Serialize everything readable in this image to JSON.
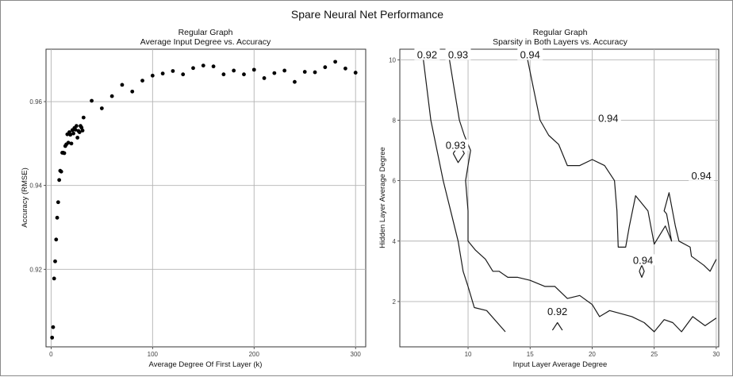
{
  "figure": {
    "title": "Spare Neural Net Performance"
  },
  "chart_data": [
    {
      "type": "scatter",
      "title": "Regular Graph",
      "subtitle": "Average Input Degree vs. Accuracy",
      "xlabel": "Average Degree Of First Layer (k)",
      "ylabel": "Accuracy (RMSE)",
      "xlim": [
        -5,
        310
      ],
      "ylim": [
        0.9015,
        0.9725
      ],
      "xticks": [
        0,
        100,
        200,
        300
      ],
      "yticks": [
        0.92,
        0.94,
        0.96
      ],
      "ytick_labels": [
        "0.92",
        "0.94",
        "0.96"
      ],
      "grid": true,
      "points": [
        [
          1,
          0.9037
        ],
        [
          2,
          0.9062
        ],
        [
          3,
          0.9178
        ],
        [
          4,
          0.9219
        ],
        [
          5,
          0.9271
        ],
        [
          6,
          0.9323
        ],
        [
          7,
          0.936
        ],
        [
          8,
          0.9413
        ],
        [
          9,
          0.9435
        ],
        [
          10,
          0.9433
        ],
        [
          11,
          0.9478
        ],
        [
          12,
          0.9478
        ],
        [
          13,
          0.9477
        ],
        [
          14,
          0.9494
        ],
        [
          15,
          0.9498
        ],
        [
          16,
          0.9522
        ],
        [
          17,
          0.9502
        ],
        [
          18,
          0.9527
        ],
        [
          19,
          0.9521
        ],
        [
          20,
          0.95
        ],
        [
          21,
          0.9532
        ],
        [
          22,
          0.9524
        ],
        [
          23,
          0.9537
        ],
        [
          24,
          0.9533
        ],
        [
          25,
          0.9542
        ],
        [
          26,
          0.9514
        ],
        [
          27,
          0.953
        ],
        [
          28,
          0.9527
        ],
        [
          29,
          0.9542
        ],
        [
          30,
          0.9538
        ],
        [
          31,
          0.9531
        ],
        [
          32,
          0.9562
        ],
        [
          40,
          0.9602
        ],
        [
          50,
          0.9584
        ],
        [
          60,
          0.9613
        ],
        [
          70,
          0.964
        ],
        [
          80,
          0.9624
        ],
        [
          90,
          0.965
        ],
        [
          100,
          0.9662
        ],
        [
          110,
          0.9667
        ],
        [
          120,
          0.9673
        ],
        [
          130,
          0.9665
        ],
        [
          140,
          0.968
        ],
        [
          150,
          0.9686
        ],
        [
          160,
          0.9684
        ],
        [
          170,
          0.9665
        ],
        [
          180,
          0.9674
        ],
        [
          190,
          0.9665
        ],
        [
          200,
          0.9676
        ],
        [
          210,
          0.9656
        ],
        [
          220,
          0.9668
        ],
        [
          230,
          0.9674
        ],
        [
          240,
          0.9647
        ],
        [
          250,
          0.9671
        ],
        [
          260,
          0.967
        ],
        [
          270,
          0.9682
        ],
        [
          280,
          0.9695
        ],
        [
          290,
          0.9679
        ],
        [
          300,
          0.9669
        ]
      ]
    },
    {
      "type": "contour",
      "title": "Regular Graph",
      "subtitle": "Sparsity in Both Layers vs. Accuracy",
      "xlabel": "Input Layer Average Degree",
      "ylabel": "Hidden Layer Average Degree",
      "xlim": [
        4.5,
        30.2
      ],
      "ylim": [
        0.5,
        10.35
      ],
      "xticks": [
        10,
        15,
        20,
        25,
        30
      ],
      "yticks": [
        2,
        4,
        6,
        8,
        10
      ],
      "grid": true,
      "contours": [
        {
          "level": "0.92",
          "paths": [
            [
              [
                6.4,
                10.0
              ],
              [
                6.7,
                9.0
              ],
              [
                7.0,
                8.0
              ],
              [
                7.5,
                7.0
              ],
              [
                8.0,
                6.0
              ],
              [
                8.6,
                5.0
              ],
              [
                9.2,
                4.0
              ],
              [
                9.6,
                3.0
              ],
              [
                10.0,
                2.5
              ],
              [
                10.5,
                1.8
              ],
              [
                11.5,
                1.7
              ],
              [
                13.0,
                1.0
              ]
            ],
            [
              [
                16.8,
                1.05
              ],
              [
                17.2,
                1.3
              ],
              [
                17.6,
                1.05
              ]
            ]
          ],
          "labels": [
            [
              6.7,
              10.1
            ],
            [
              17.2,
              1.6
            ]
          ]
        },
        {
          "level": "0.93",
          "paths": [
            [
              [
                8.5,
                10.0
              ],
              [
                8.9,
                9.0
              ],
              [
                9.3,
                8.0
              ],
              [
                9.7,
                7.5
              ],
              [
                10.2,
                7.0
              ],
              [
                10.0,
                6.5
              ],
              [
                9.8,
                6.0
              ],
              [
                10.0,
                5.0
              ],
              [
                10.0,
                4.0
              ],
              [
                10.6,
                3.7
              ],
              [
                11.4,
                3.4
              ],
              [
                12.0,
                3.0
              ],
              [
                12.5,
                3.0
              ],
              [
                13.2,
                2.8
              ],
              [
                14.0,
                2.8
              ],
              [
                15.0,
                2.7
              ],
              [
                16.2,
                2.5
              ],
              [
                17.0,
                2.5
              ],
              [
                18.0,
                2.1
              ],
              [
                19.0,
                2.2
              ],
              [
                20.0,
                1.9
              ],
              [
                20.6,
                1.5
              ],
              [
                21.4,
                1.7
              ],
              [
                22.3,
                1.6
              ],
              [
                23.2,
                1.5
              ],
              [
                24.2,
                1.3
              ],
              [
                25.0,
                1.0
              ],
              [
                25.8,
                1.4
              ],
              [
                26.5,
                1.3
              ],
              [
                27.2,
                1.0
              ],
              [
                28.1,
                1.5
              ],
              [
                29.1,
                1.2
              ],
              [
                30.0,
                1.45
              ]
            ],
            [
              [
                8.8,
                6.9
              ],
              [
                9.3,
                7.2
              ],
              [
                9.7,
                6.9
              ],
              [
                9.2,
                6.6
              ],
              [
                8.8,
                6.9
              ]
            ]
          ],
          "labels": [
            [
              9.2,
              10.1
            ],
            [
              9.0,
              7.1
            ]
          ]
        },
        {
          "level": "0.94",
          "paths": [
            [
              [
                14.8,
                10.0
              ],
              [
                15.3,
                9.0
              ],
              [
                15.8,
                8.0
              ],
              [
                16.5,
                7.5
              ],
              [
                17.3,
                7.2
              ],
              [
                18.0,
                6.5
              ],
              [
                19.0,
                6.5
              ],
              [
                20.0,
                6.7
              ],
              [
                21.0,
                6.5
              ],
              [
                21.8,
                6.0
              ],
              [
                22.0,
                5.0
              ],
              [
                22.1,
                3.8
              ],
              [
                22.7,
                3.8
              ],
              [
                23.0,
                4.5
              ],
              [
                23.5,
                5.5
              ],
              [
                24.5,
                5.0
              ],
              [
                25.0,
                3.9
              ],
              [
                25.9,
                4.5
              ],
              [
                26.4,
                4.0
              ],
              [
                26.0,
                4.9
              ],
              [
                25.8,
                5.0
              ],
              [
                26.2,
                5.6
              ],
              [
                26.7,
                4.5
              ],
              [
                27.0,
                4.0
              ],
              [
                27.9,
                3.8
              ],
              [
                28.0,
                3.5
              ],
              [
                29.0,
                3.2
              ],
              [
                29.5,
                3.0
              ],
              [
                30.0,
                3.4
              ]
            ],
            [
              [
                23.8,
                3.0
              ],
              [
                24.0,
                3.2
              ],
              [
                24.2,
                3.0
              ],
              [
                24.0,
                2.8
              ],
              [
                23.8,
                3.0
              ]
            ]
          ],
          "labels": [
            [
              15.0,
              10.1
            ],
            [
              21.3,
              8.0
            ],
            [
              28.8,
              6.1
            ],
            [
              24.1,
              3.3
            ]
          ]
        }
      ]
    }
  ]
}
